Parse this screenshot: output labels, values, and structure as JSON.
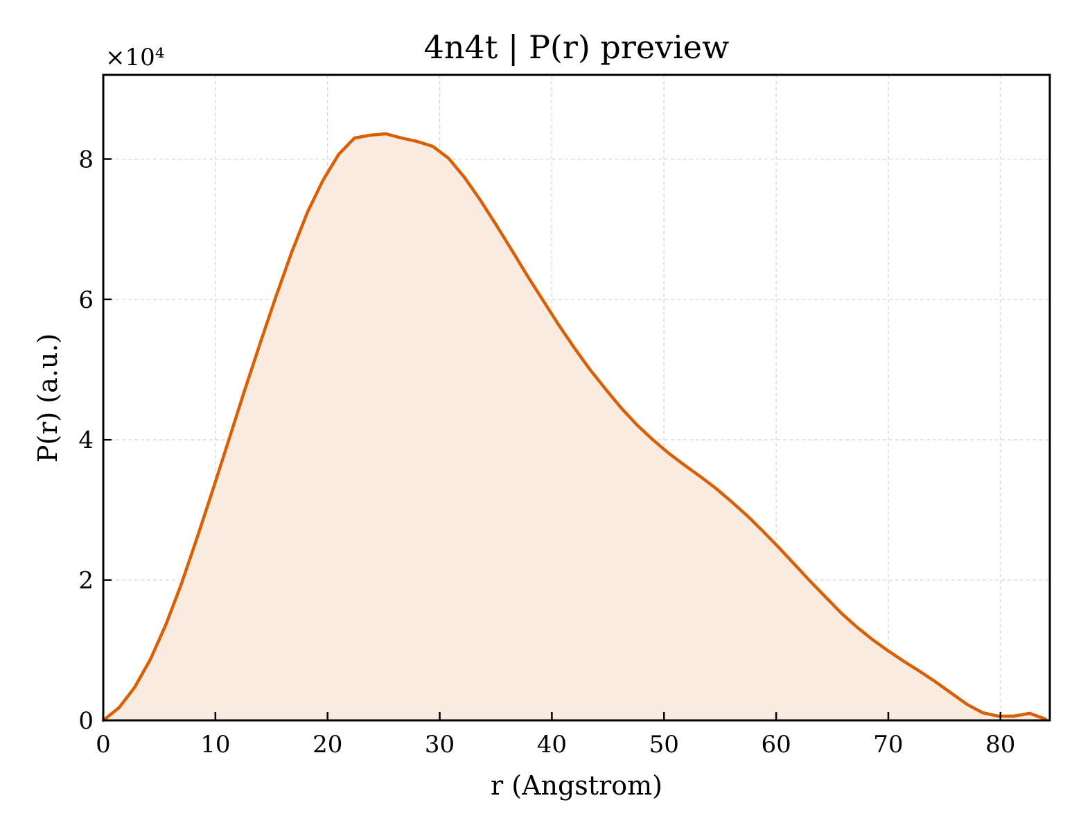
{
  "chart_data": {
    "type": "line",
    "title": "4n4t | P(r) preview",
    "xlabel": "r (Angstrom)",
    "ylabel": "P(r) (a.u.)",
    "y_multiplier_label": "×10⁴",
    "xlim": [
      0,
      84.4
    ],
    "ylim": [
      0,
      9.2
    ],
    "x_ticks": [
      0,
      10,
      20,
      30,
      40,
      50,
      60,
      70,
      80
    ],
    "y_ticks": [
      0,
      2,
      4,
      6,
      8
    ],
    "grid": true,
    "line_color": "#d95f02",
    "fill_color": "#f9ebe0",
    "series": [
      {
        "x": [
          0,
          1.4,
          2.8,
          4.2,
          5.6,
          7.0,
          8.4,
          9.8,
          11.2,
          12.6,
          14.0,
          15.4,
          16.8,
          18.2,
          19.6,
          21.0,
          22.4,
          23.8,
          25.2,
          26.6,
          28.0,
          29.4,
          30.8,
          32.2,
          33.6,
          35.0,
          36.4,
          37.8,
          39.2,
          40.6,
          42.0,
          43.4,
          44.8,
          46.2,
          47.6,
          49.0,
          50.4,
          51.8,
          53.2,
          54.6,
          56.0,
          57.4,
          58.8,
          60.2,
          61.6,
          63.0,
          64.4,
          65.8,
          67.2,
          68.6,
          70.0,
          71.4,
          72.8,
          74.2,
          75.6,
          77.0,
          78.4,
          79.8,
          81.2,
          82.6,
          84.0
        ],
        "values": [
          0.0,
          0.18,
          0.47,
          0.87,
          1.37,
          1.96,
          2.62,
          3.3,
          4.0,
          4.7,
          5.38,
          6.04,
          6.67,
          7.24,
          7.7,
          8.07,
          8.3,
          8.34,
          8.36,
          8.3,
          8.25,
          8.18,
          8.01,
          7.74,
          7.42,
          7.07,
          6.71,
          6.34,
          5.99,
          5.64,
          5.31,
          5.0,
          4.72,
          4.45,
          4.21,
          4.0,
          3.81,
          3.64,
          3.48,
          3.31,
          3.12,
          2.92,
          2.7,
          2.47,
          2.23,
          1.99,
          1.76,
          1.53,
          1.33,
          1.15,
          0.99,
          0.84,
          0.7,
          0.55,
          0.39,
          0.23,
          0.11,
          0.06,
          0.06,
          0.1,
          0.02
        ]
      }
    ]
  }
}
